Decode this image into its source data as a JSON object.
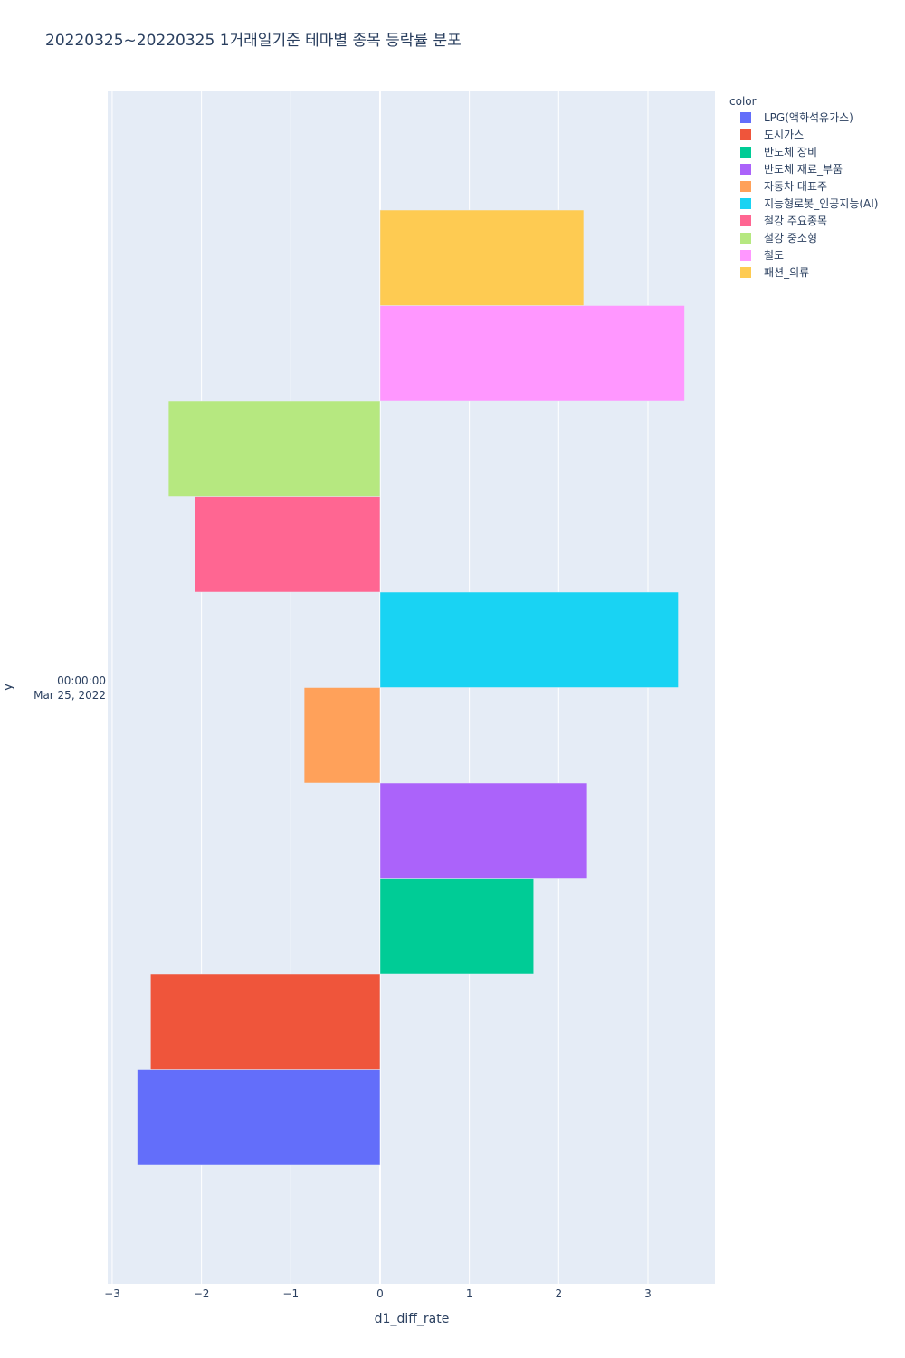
{
  "chart_data": {
    "type": "bar",
    "orientation": "horizontal",
    "barmode": "group",
    "title": "20220325~20220325 1거래일기준 테마별 종목 등락률 분포",
    "xlabel": "d1_diff_rate",
    "ylabel": "y",
    "xlim": [
      -3.05,
      3.75
    ],
    "x_ticks": [
      -3,
      -2,
      -1,
      0,
      1,
      2,
      3
    ],
    "x_tick_labels": [
      "−3",
      "−2",
      "−1",
      "0",
      "1",
      "2",
      "3"
    ],
    "y_category_time": "00:00:00",
    "y_category_date": "Mar 25, 2022",
    "grid": true,
    "legend_title": "color",
    "legend_position": "top-right",
    "series": [
      {
        "name": "LPG(액화석유가스)",
        "value": -2.72,
        "color": "#636efa"
      },
      {
        "name": "도시가스",
        "value": -2.57,
        "color": "#EF553B"
      },
      {
        "name": "반도체 장비",
        "value": 1.72,
        "color": "#00cc96"
      },
      {
        "name": "반도체 재료_부품",
        "value": 2.32,
        "color": "#ab63fa"
      },
      {
        "name": "자동차 대표주",
        "value": -0.85,
        "color": "#FFA15A"
      },
      {
        "name": "지능형로봇_인공지능(AI)",
        "value": 3.34,
        "color": "#19d3f3"
      },
      {
        "name": "철강 주요종목",
        "value": -2.07,
        "color": "#FF6692"
      },
      {
        "name": "철강 중소형",
        "value": -2.37,
        "color": "#B6E880"
      },
      {
        "name": "철도",
        "value": 3.41,
        "color": "#FF97FF"
      },
      {
        "name": "패션_의류",
        "value": 2.28,
        "color": "#FECB52"
      }
    ]
  },
  "colors": {
    "plot_bg": "#E5ECF6",
    "grid": "#ffffff",
    "text": "#2a3f5f"
  }
}
